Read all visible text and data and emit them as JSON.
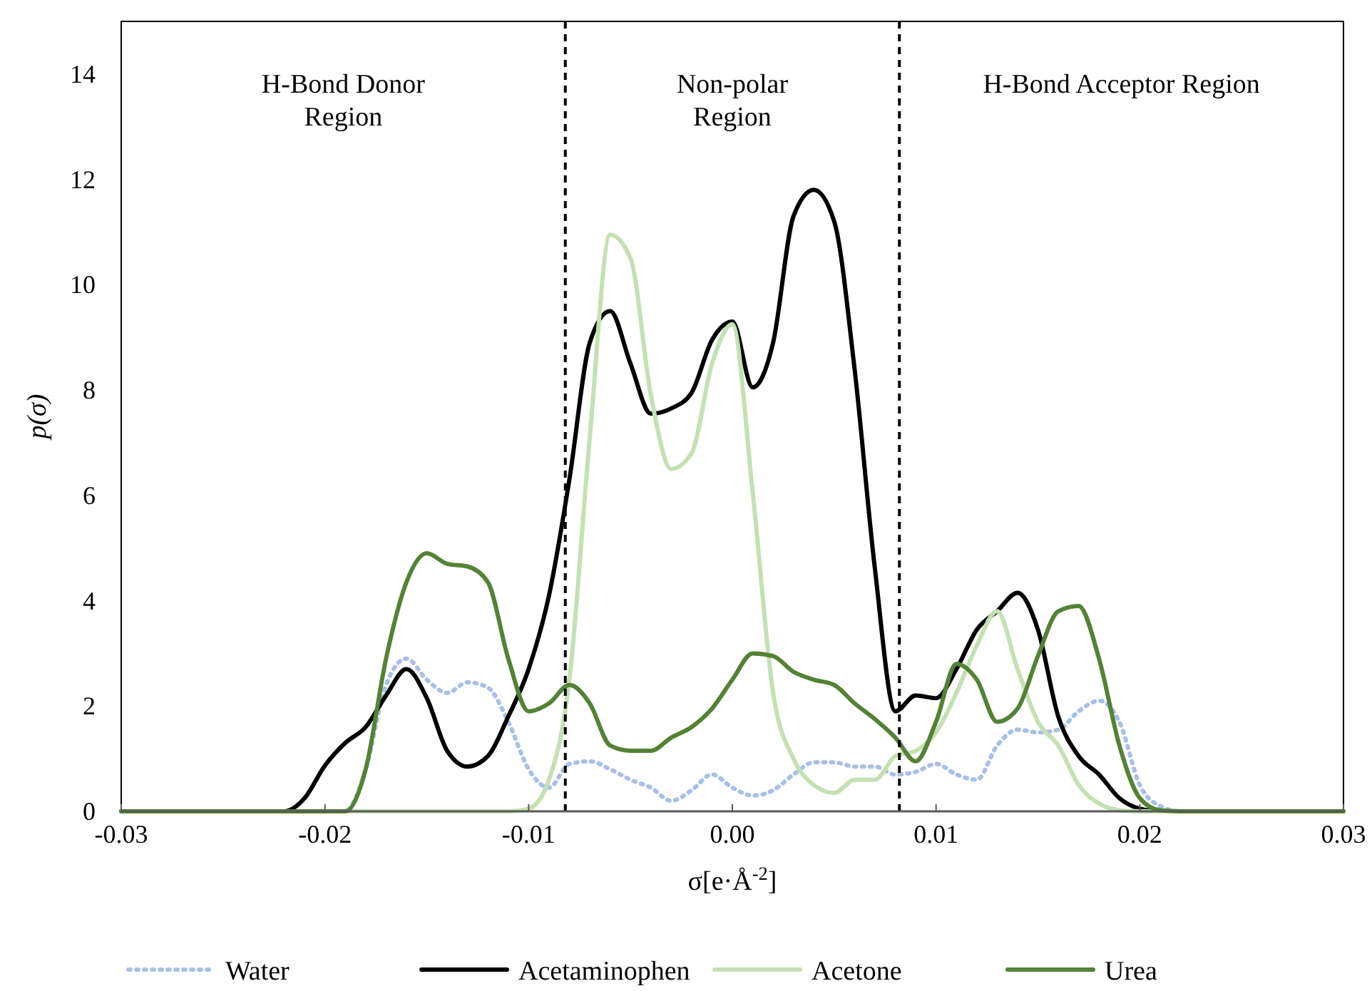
{
  "chart_data": {
    "type": "line",
    "xlabel": "σ[e·Å$^{-2}$]",
    "ylabel": "p(σ)",
    "xlim": [
      -0.03,
      0.03
    ],
    "xticks": [
      -0.03,
      -0.02,
      -0.01,
      {
        "value": 0,
        "label": "0.00"
      },
      0.01,
      0.02,
      0.03
    ],
    "ylim": [
      0,
      15
    ],
    "yticks": [
      0,
      2,
      4,
      6,
      8,
      10,
      12,
      14
    ],
    "grid": false,
    "legend": "bottom",
    "ref_lines": [
      {
        "axis": "x",
        "value": -0.0082,
        "color": "#000000",
        "line_style": "dashed"
      },
      {
        "axis": "x",
        "value": 0.0082,
        "color": "#000000",
        "line_style": "dashed"
      }
    ],
    "annotations": [
      "H-Bond Donor\nRegion",
      "Non-polar\nRegion",
      "H-Bond Acceptor Region"
    ],
    "series": [
      {
        "name": "Water",
        "color": "#a9bfe6",
        "line_style": "dotted",
        "x": [
          -0.03,
          -0.019,
          -0.018,
          -0.017,
          -0.016,
          -0.015,
          -0.014,
          -0.013,
          -0.012,
          -0.011,
          -0.01,
          -0.009,
          -0.008,
          -0.007,
          -0.006,
          -0.005,
          -0.004,
          -0.003,
          -0.002,
          -0.001,
          0,
          0.001,
          0.002,
          0.003,
          0.004,
          0.005,
          0.006,
          0.007,
          0.008,
          0.009,
          0.01,
          0.011,
          0.012,
          0.013,
          0.014,
          0.015,
          0.016,
          0.017,
          0.018,
          0.019,
          0.02,
          0.021,
          0.022,
          0.03
        ],
        "values": [
          0,
          0,
          0.8,
          2.4,
          2.9,
          2.5,
          2.25,
          2.45,
          2.35,
          1.7,
          0.8,
          0.45,
          0.9,
          0.95,
          0.8,
          0.6,
          0.45,
          0.2,
          0.4,
          0.7,
          0.45,
          0.3,
          0.4,
          0.7,
          0.93,
          0.93,
          0.85,
          0.85,
          0.7,
          0.75,
          0.9,
          0.7,
          0.6,
          1.25,
          1.55,
          1.5,
          1.55,
          1.9,
          2.1,
          1.7,
          0.5,
          0.1,
          0,
          0
        ]
      },
      {
        "name": "Acetaminophen",
        "color": "#000000",
        "line_style": "solid",
        "x": [
          -0.03,
          -0.022,
          -0.021,
          -0.02,
          -0.019,
          -0.018,
          -0.017,
          -0.016,
          -0.015,
          -0.014,
          -0.013,
          -0.012,
          -0.011,
          -0.01,
          -0.009,
          -0.008,
          -0.007,
          -0.006,
          -0.005,
          -0.004,
          -0.003,
          -0.002,
          -0.001,
          0,
          0.001,
          0.002,
          0.003,
          0.004,
          0.005,
          0.006,
          0.007,
          0.008,
          0.009,
          0.01,
          0.011,
          0.012,
          0.013,
          0.014,
          0.015,
          0.016,
          0.017,
          0.018,
          0.019,
          0.02,
          0.021,
          0.03
        ],
        "values": [
          0,
          0,
          0.25,
          0.87,
          1.3,
          1.6,
          2.2,
          2.7,
          2.15,
          1.15,
          0.85,
          1.05,
          1.8,
          2.7,
          4.1,
          6.3,
          8.9,
          9.5,
          8.5,
          7.55,
          7.65,
          7.95,
          8.95,
          9.3,
          8.05,
          8.9,
          11.3,
          11.8,
          11.2,
          8.4,
          4.6,
          1.9,
          2.2,
          2.15,
          2.7,
          3.45,
          3.8,
          4.15,
          3.45,
          1.8,
          1.05,
          0.7,
          0.25,
          0.05,
          0,
          0
        ]
      },
      {
        "name": "Acetone",
        "color": "#c5e0b4",
        "line_style": "solid",
        "x": [
          -0.03,
          -0.011,
          -0.01,
          -0.009,
          -0.008,
          -0.007,
          -0.006,
          -0.005,
          -0.004,
          -0.003,
          -0.002,
          -0.001,
          0,
          0.001,
          0.002,
          0.003,
          0.004,
          0.005,
          0.006,
          0.007,
          0.008,
          0.009,
          0.01,
          0.011,
          0.012,
          0.013,
          0.014,
          0.015,
          0.016,
          0.017,
          0.018,
          0.019,
          0.02,
          0.03
        ],
        "values": [
          0,
          0,
          0.05,
          0.6,
          2.5,
          7.1,
          10.95,
          10.5,
          7.9,
          6.5,
          6.8,
          8.5,
          9.25,
          6.05,
          2.25,
          1.0,
          0.5,
          0.35,
          0.6,
          0.6,
          1.05,
          1.15,
          1.5,
          2.25,
          3.15,
          3.8,
          2.7,
          1.7,
          1.25,
          0.5,
          0.15,
          0.02,
          0,
          0
        ]
      },
      {
        "name": "Urea",
        "color": "#548235",
        "line_style": "solid",
        "x": [
          -0.03,
          -0.019,
          -0.018,
          -0.017,
          -0.016,
          -0.015,
          -0.014,
          -0.013,
          -0.012,
          -0.011,
          -0.01,
          -0.009,
          -0.008,
          -0.007,
          -0.006,
          -0.005,
          -0.004,
          -0.003,
          -0.002,
          -0.001,
          0,
          0.001,
          0.002,
          0.003,
          0.004,
          0.005,
          0.006,
          0.007,
          0.008,
          0.009,
          0.01,
          0.011,
          0.012,
          0.013,
          0.014,
          0.015,
          0.016,
          0.017,
          0.018,
          0.019,
          0.02,
          0.021,
          0.022,
          0.03
        ],
        "values": [
          0,
          0,
          0.8,
          2.9,
          4.35,
          4.9,
          4.7,
          4.65,
          4.35,
          2.9,
          1.9,
          2.05,
          2.4,
          2.05,
          1.25,
          1.15,
          1.15,
          1.4,
          1.6,
          1.95,
          2.5,
          3.0,
          2.95,
          2.65,
          2.5,
          2.4,
          2.05,
          1.75,
          1.4,
          0.95,
          1.7,
          2.8,
          2.5,
          1.7,
          1.95,
          2.95,
          3.8,
          3.9,
          2.9,
          1.25,
          0.25,
          0.02,
          0,
          0
        ]
      }
    ]
  }
}
